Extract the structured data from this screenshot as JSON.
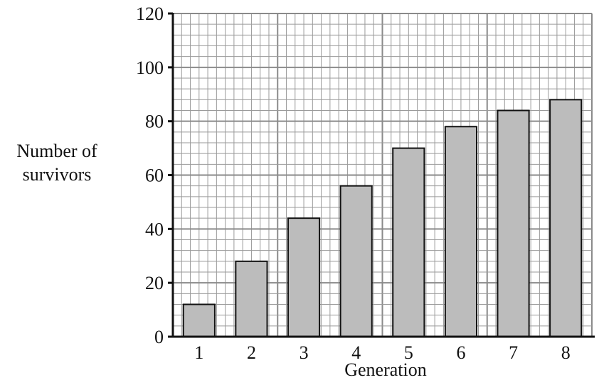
{
  "chart_data": {
    "type": "bar",
    "title": "",
    "xlabel": "Generation",
    "ylabel_lines": [
      "Number of",
      "survivors"
    ],
    "categories": [
      "1",
      "2",
      "3",
      "4",
      "5",
      "6",
      "7",
      "8"
    ],
    "values": [
      12,
      28,
      44,
      56,
      70,
      78,
      84,
      88
    ],
    "ylim": [
      0,
      120
    ],
    "yticks": [
      0,
      20,
      40,
      60,
      80,
      100,
      120
    ],
    "grid": true,
    "grid_minor_step": 4,
    "grid_major_step": 20,
    "colors": {
      "bar": "#bcbcbc",
      "edge": "#111111",
      "grid": "#9a9a9a"
    }
  }
}
